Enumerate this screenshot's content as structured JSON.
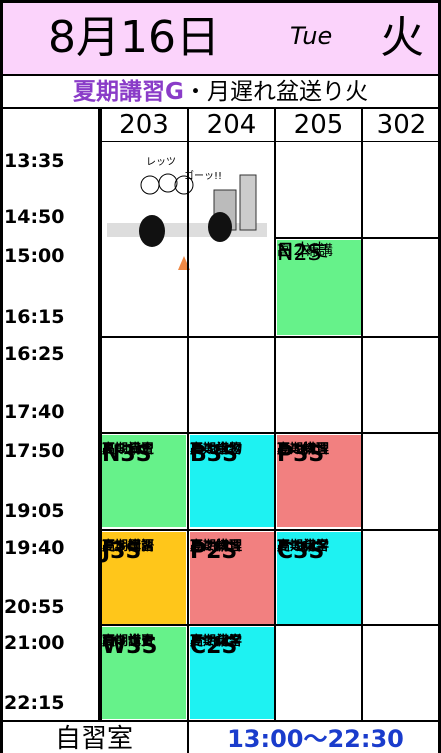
{
  "header": {
    "date": "8月16日",
    "weekday_en": "Tue",
    "weekday_jp": "火"
  },
  "subtitle": {
    "event": "夏期講習G",
    "note": "・月遅れ盆送り火"
  },
  "rooms": [
    "203",
    "204",
    "205",
    "302"
  ],
  "times": [
    "13:35",
    "14:50",
    "15:00",
    "16:15",
    "16:25",
    "17:40",
    "17:50",
    "19:05",
    "19:40",
    "20:55",
    "21:00",
    "22:15"
  ],
  "image_text": [
    "レッツ",
    "ゴーッ!!"
  ],
  "classes": [
    {
      "top": "高２補講",
      "code": "N2S",
      "bottom": "日本史"
    },
    {
      "top": "高３日史",
      "code": "N3S",
      "bottom": "夏期講習"
    },
    {
      "top": "高３生物",
      "code": "B3S",
      "bottom": "夏期講習"
    },
    {
      "top": "高３物理",
      "code": "P3S",
      "bottom": "夏期講習"
    },
    {
      "top": "高３国語",
      "code": "J3S",
      "bottom": "夏期講習"
    },
    {
      "top": "高２物理",
      "code": "P2S",
      "bottom": "夏期講習"
    },
    {
      "top": "高３化学",
      "code": "C3S",
      "bottom": "夏期講習"
    },
    {
      "top": "高３世史",
      "code": "W3S",
      "bottom": "夏期講習"
    },
    {
      "top": "高２化学",
      "code": "C2S",
      "bottom": "夏期講習"
    }
  ],
  "footer": {
    "label": "自習室",
    "hours": "13:00〜22:30"
  }
}
